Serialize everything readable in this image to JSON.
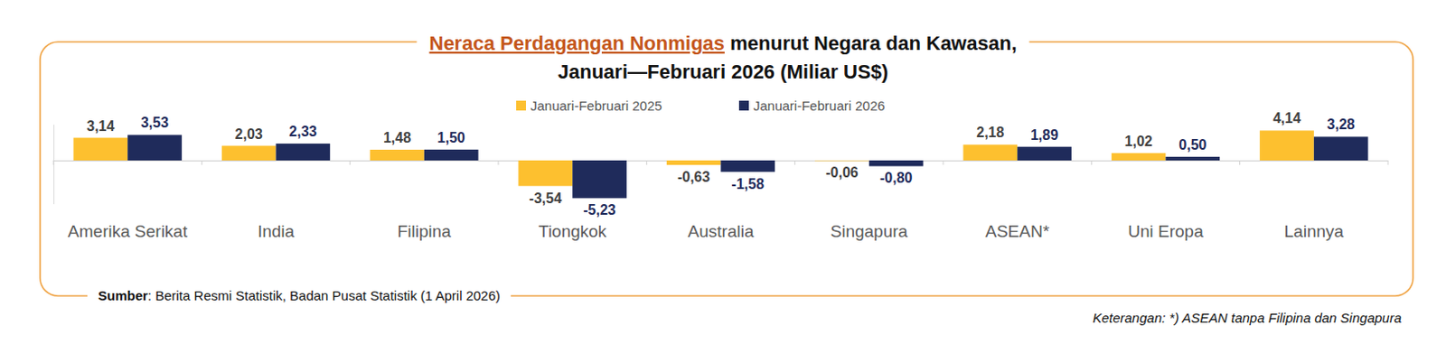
{
  "chart_data": {
    "type": "bar",
    "title": [
      "Neraca Perdagangan Nonmigas menurut Negara dan Kawasan,",
      "Januari—Februari 2026 (Miliar US$)"
    ],
    "categories": [
      "Amerika Serikat",
      "India",
      "Filipina",
      "Tiongkok",
      "Australia",
      "Singapura",
      "ASEAN*",
      "Uni Eropa",
      "Lainnya"
    ],
    "series": [
      {
        "name": "Januari-Februari 2025",
        "color": "#FDC02F",
        "values": [
          3.14,
          2.03,
          1.48,
          -3.54,
          -0.63,
          -0.06,
          2.18,
          1.02,
          4.14
        ],
        "value_labels": [
          "3,14",
          "2,03",
          "1,48",
          "-3,54",
          "-0,63",
          "-0,06",
          "2,18",
          "1,02",
          "4,14"
        ]
      },
      {
        "name": "Januari-Februari 2026",
        "color": "#1F2B5B",
        "values": [
          3.53,
          2.33,
          1.5,
          -5.23,
          -1.58,
          -0.8,
          1.89,
          0.5,
          3.28
        ],
        "value_labels": [
          "3,53",
          "2,33",
          "1,50",
          "-5,23",
          "-1,58",
          "-0,80",
          "1,89",
          "0,50",
          "3,28"
        ]
      }
    ],
    "ylim": [
      -6,
      5
    ],
    "yticks": [
      0
    ],
    "tick_labels": false,
    "data_labels": true,
    "legend": "top",
    "source": "Sumber: Berita Resmi Statistik, Badan Pusat Statistik (1 April 2026)",
    "note": "Keterangan: *) ASEAN tanpa Filipina dan Singapura"
  }
}
